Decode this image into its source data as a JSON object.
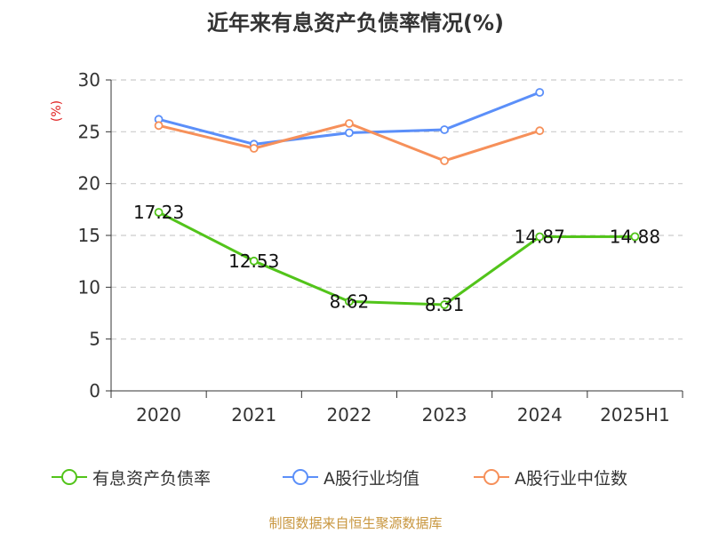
{
  "chart_data": {
    "type": "line",
    "title": "近年来有息资产负债率情况(%)",
    "ylabel": "(%)",
    "categories": [
      "2020",
      "2021",
      "2022",
      "2023",
      "2024",
      "2025H1"
    ],
    "ylim": [
      0,
      30
    ],
    "yticks": [
      0,
      5,
      10,
      15,
      20,
      25,
      30
    ],
    "grid": true,
    "legend_position": "bottom",
    "series": [
      {
        "name": "有息资产负债率",
        "color": "#52c41a",
        "values": [
          17.23,
          12.53,
          8.62,
          8.31,
          14.87,
          14.88
        ],
        "data_labels": [
          "17.23",
          "12.53",
          "8.62",
          "8.31",
          "14.87",
          "14.88"
        ]
      },
      {
        "name": "A股行业均值",
        "color": "#5b8ff9",
        "values": [
          26.2,
          23.8,
          24.9,
          25.2,
          28.8,
          null
        ]
      },
      {
        "name": "A股行业中位数",
        "color": "#f6905a",
        "values": [
          25.6,
          23.4,
          25.8,
          22.2,
          25.1,
          null
        ]
      }
    ]
  },
  "source": "制图数据来自恒生聚源数据库"
}
